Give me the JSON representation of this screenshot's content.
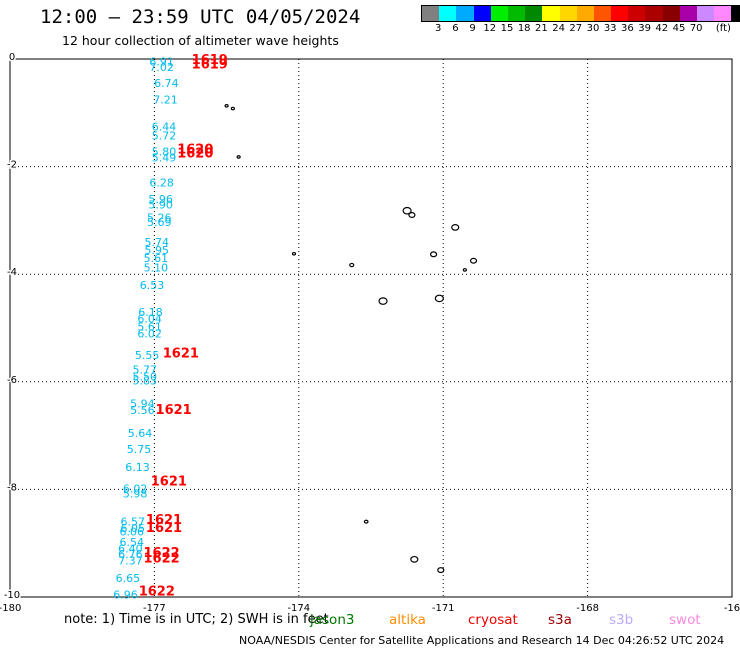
{
  "header": {
    "title": "12:00 — 23:59 UTC 04/05/2024",
    "subtitle": "12 hour collection of altimeter wave heights"
  },
  "color_scale": {
    "unit": "(ft)",
    "colors": [
      "#808080",
      "#00ffff",
      "#00aaff",
      "#0000ff",
      "#00ee00",
      "#00bb00",
      "#008800",
      "#ffff00",
      "#ffd700",
      "#ffaa00",
      "#ff5500",
      "#ff0000",
      "#cc0000",
      "#aa0000",
      "#880000",
      "#aa00aa",
      "#cc88ff",
      "#ff88ff",
      "#000000"
    ],
    "ticks": [
      "3",
      "6",
      "9",
      "12",
      "15",
      "18",
      "21",
      "24",
      "27",
      "30",
      "33",
      "36",
      "39",
      "42",
      "45",
      "70"
    ]
  },
  "axes": {
    "x_ticks": [
      "-180",
      "-177",
      "-174",
      "-171",
      "-168",
      "-16"
    ],
    "y_ticks": [
      "0",
      "-2",
      "-4",
      "-6",
      "-8",
      "-10"
    ]
  },
  "map_data": {
    "swh_color": "#00bbee",
    "time_color": "#ff0000",
    "swh_labels": [
      {
        "text": "6.91",
        "lon": -176.85,
        "lat": -0.05
      },
      {
        "text": "7.02",
        "lon": -176.85,
        "lat": -0.15
      },
      {
        "text": "6.74",
        "lon": -176.75,
        "lat": -0.45
      },
      {
        "text": "7.21",
        "lon": -176.77,
        "lat": -0.75
      },
      {
        "text": "6.44",
        "lon": -176.8,
        "lat": -1.25
      },
      {
        "text": "5.72",
        "lon": -176.8,
        "lat": -1.42
      },
      {
        "text": "5.80",
        "lon": -176.8,
        "lat": -1.72
      },
      {
        "text": "5.49",
        "lon": -176.8,
        "lat": -1.83
      },
      {
        "text": "6.28",
        "lon": -176.85,
        "lat": -2.3
      },
      {
        "text": "5.96",
        "lon": -176.87,
        "lat": -2.6
      },
      {
        "text": "5.90",
        "lon": -176.87,
        "lat": -2.7
      },
      {
        "text": "5.26",
        "lon": -176.9,
        "lat": -2.95
      },
      {
        "text": "5.69",
        "lon": -176.9,
        "lat": -3.03
      },
      {
        "text": "5.74",
        "lon": -176.95,
        "lat": -3.4
      },
      {
        "text": "5.95",
        "lon": -176.95,
        "lat": -3.55
      },
      {
        "text": "5.61",
        "lon": -176.97,
        "lat": -3.7
      },
      {
        "text": "5.10",
        "lon": -176.97,
        "lat": -3.88
      },
      {
        "text": "6.53",
        "lon": -177.05,
        "lat": -4.2
      },
      {
        "text": "6.18",
        "lon": -177.08,
        "lat": -4.7
      },
      {
        "text": "6.04",
        "lon": -177.1,
        "lat": -4.82
      },
      {
        "text": "5.61",
        "lon": -177.1,
        "lat": -4.97
      },
      {
        "text": "6.02",
        "lon": -177.1,
        "lat": -5.1
      },
      {
        "text": "5.55",
        "lon": -177.15,
        "lat": -5.5
      },
      {
        "text": "5.77",
        "lon": -177.2,
        "lat": -5.77
      },
      {
        "text": "5.50",
        "lon": -177.2,
        "lat": -5.9
      },
      {
        "text": "5.83",
        "lon": -177.2,
        "lat": -5.98
      },
      {
        "text": "5.94",
        "lon": -177.25,
        "lat": -6.4
      },
      {
        "text": "5.56",
        "lon": -177.25,
        "lat": -6.52
      },
      {
        "text": "5.64",
        "lon": -177.3,
        "lat": -6.95
      },
      {
        "text": "5.75",
        "lon": -177.32,
        "lat": -7.25
      },
      {
        "text": "6.13",
        "lon": -177.35,
        "lat": -7.58
      },
      {
        "text": "6.02",
        "lon": -177.4,
        "lat": -7.98
      },
      {
        "text": "5.98",
        "lon": -177.4,
        "lat": -8.08
      },
      {
        "text": "6.57",
        "lon": -177.45,
        "lat": -8.6
      },
      {
        "text": "6.05",
        "lon": -177.45,
        "lat": -8.72
      },
      {
        "text": "6.06",
        "lon": -177.47,
        "lat": -8.78
      },
      {
        "text": "6.54",
        "lon": -177.47,
        "lat": -8.98
      },
      {
        "text": "6.40",
        "lon": -177.5,
        "lat": -9.1
      },
      {
        "text": "6.76",
        "lon": -177.5,
        "lat": -9.2
      },
      {
        "text": "7.37",
        "lon": -177.5,
        "lat": -9.32
      },
      {
        "text": "6.65",
        "lon": -177.55,
        "lat": -9.65
      },
      {
        "text": "6.96",
        "lon": -177.6,
        "lat": -9.95
      }
    ],
    "time_labels": [
      {
        "text": "1619",
        "lon": -175.85,
        "lat": -0.02
      },
      {
        "text": "1619",
        "lon": -175.85,
        "lat": -0.1
      },
      {
        "text": "1620",
        "lon": -176.15,
        "lat": -1.68
      },
      {
        "text": "1620",
        "lon": -176.15,
        "lat": -1.76
      },
      {
        "text": "1621",
        "lon": -176.45,
        "lat": -5.47
      },
      {
        "text": "1621",
        "lon": -176.6,
        "lat": -6.52
      },
      {
        "text": "1621",
        "lon": -176.7,
        "lat": -7.85
      },
      {
        "text": "1621",
        "lon": -176.8,
        "lat": -8.57
      },
      {
        "text": "1621",
        "lon": -176.8,
        "lat": -8.72
      },
      {
        "text": "1622",
        "lon": -176.85,
        "lat": -9.18
      },
      {
        "text": "1622",
        "lon": -176.85,
        "lat": -9.28
      },
      {
        "text": "1622",
        "lon": -176.95,
        "lat": -9.9
      }
    ],
    "islands": [
      {
        "lon": -175.5,
        "lat": -0.87,
        "r": 1.5
      },
      {
        "lon": -175.37,
        "lat": -0.92,
        "r": 1.5
      },
      {
        "lon": -175.25,
        "lat": -1.82,
        "r": 1.5
      },
      {
        "lon": -171.75,
        "lat": -2.82,
        "r": 4
      },
      {
        "lon": -171.65,
        "lat": -2.9,
        "r": 3
      },
      {
        "lon": -170.75,
        "lat": -3.13,
        "r": 3.5
      },
      {
        "lon": -171.2,
        "lat": -3.63,
        "r": 3
      },
      {
        "lon": -170.37,
        "lat": -3.75,
        "r": 3
      },
      {
        "lon": -170.55,
        "lat": -3.92,
        "r": 1.5
      },
      {
        "lon": -174.1,
        "lat": -3.62,
        "r": 1.5
      },
      {
        "lon": -172.9,
        "lat": -3.83,
        "r": 2
      },
      {
        "lon": -172.25,
        "lat": -4.5,
        "r": 4
      },
      {
        "lon": -171.08,
        "lat": -4.45,
        "r": 4
      },
      {
        "lon": -172.6,
        "lat": -8.6,
        "r": 1.8
      },
      {
        "lon": -171.6,
        "lat": -9.3,
        "r": 3.5
      },
      {
        "lon": -171.05,
        "lat": -9.5,
        "r": 3
      }
    ]
  },
  "footer": {
    "note": "note:  1) Time is in UTC;  2) SWH is in feet",
    "satellites": [
      {
        "name": "jason3",
        "color": "#007700"
      },
      {
        "name": "altika",
        "color": "#ff8c00"
      },
      {
        "name": "cryosat",
        "color": "#ee0000"
      },
      {
        "name": "s3a",
        "color": "#990000"
      },
      {
        "name": "s3b",
        "color": "#bbaaff"
      },
      {
        "name": "swot",
        "color": "#ff88dd"
      }
    ],
    "credit": "NOAA/NESDIS Center for Satellite Applications and Research    14 Dec 04:26:52 UTC 2024"
  }
}
